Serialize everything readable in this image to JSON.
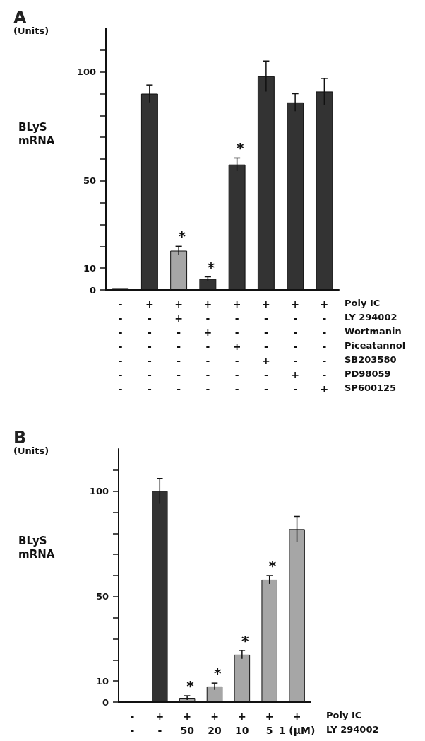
{
  "chart_data": [
    {
      "type": "bar",
      "title": "A",
      "subtitle": "(Units)",
      "ylabel": "BLyS mRNA",
      "categories": [
        "-\n-\n-\n-\n-\n-\n-",
        "+\n-\n-\n-\n-\n-\n-",
        "+\n+\n-\n-\n-\n-\n-",
        "+\n-\n+\n-\n-\n-\n-",
        "+\n-\n-\n+\n-\n-\n-",
        "+\n-\n-\n-\n+\n-\n-",
        "+\n-\n-\n-\n-\n+\n-",
        "+\n-\n-\n-\n-\n-\n+"
      ],
      "values": [
        0.5,
        90,
        18,
        5,
        57.5,
        98,
        86,
        91
      ],
      "errors": [
        null,
        4,
        2,
        1,
        3,
        7,
        4,
        6
      ],
      "value_labels": [
        null,
        null,
        "*",
        "*",
        "*",
        null,
        null,
        null
      ],
      "colors": [
        "#555555",
        "#333333",
        "#a6a6a6",
        "#333333",
        "#333333",
        "#333333",
        "#333333",
        "#333333"
      ],
      "ylim": [
        0,
        120
      ],
      "yticks": [
        0,
        10,
        {
          "value": 20,
          "label": null
        },
        {
          "value": 30,
          "label": null
        },
        {
          "value": 40,
          "label": null
        },
        50,
        {
          "value": 60,
          "label": null
        },
        {
          "value": 70,
          "label": null
        },
        {
          "value": 80,
          "label": null
        },
        {
          "value": 90,
          "label": null
        },
        100,
        {
          "value": 110,
          "label": null
        }
      ],
      "annotations": [
        "Poly IC",
        "LY 294002",
        "Wortmanin",
        "Piceatannol",
        "SB203580",
        "PD98059",
        "SP600125"
      ]
    },
    {
      "type": "bar",
      "title": "B",
      "subtitle": "(Units)",
      "ylabel": "BLyS mRNA",
      "categories": [
        "-\n-",
        "+\n-",
        "+\n50",
        "+\n20",
        "+\n10",
        "+\n5",
        "+\n1 (μM)"
      ],
      "values": [
        0.5,
        100,
        2,
        7.4,
        22.5,
        58,
        82
      ],
      "errors": [
        null,
        6,
        1,
        1.6,
        2,
        2,
        6
      ],
      "value_labels": [
        null,
        null,
        "*",
        "*",
        "*",
        "*",
        null
      ],
      "colors": [
        "#555555",
        "#333333",
        "#a6a6a6",
        "#a6a6a6",
        "#a6a6a6",
        "#a6a6a6",
        "#a6a6a6"
      ],
      "ylim": [
        0,
        120
      ],
      "yticks": [
        0,
        10,
        {
          "value": 20,
          "label": null
        },
        {
          "value": 30,
          "label": null
        },
        {
          "value": 40,
          "label": null
        },
        50,
        {
          "value": 60,
          "label": null
        },
        {
          "value": 70,
          "label": null
        },
        {
          "value": 80,
          "label": null
        },
        {
          "value": 90,
          "label": null
        },
        100,
        {
          "value": 110,
          "label": null
        }
      ],
      "annotations": [
        "Poly IC",
        "LY 294002"
      ]
    }
  ]
}
